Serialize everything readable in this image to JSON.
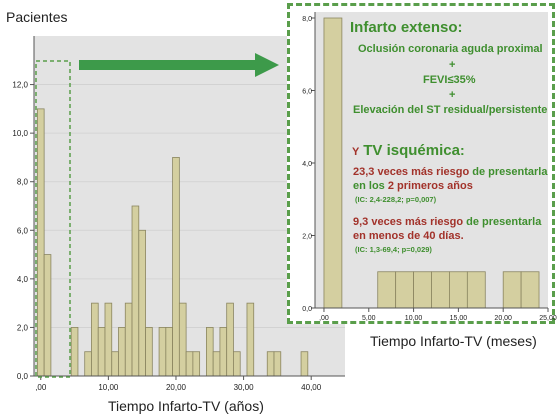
{
  "main_chart": {
    "ylabel": "Pacientes",
    "xlabel": "Tiempo Infarto-TV (años)"
  },
  "inset_chart": {
    "xlabel": "Tiempo Infarto-TV (meses)"
  },
  "annotation": {
    "heading": "Infarto extenso:",
    "line1": "Oclusión coronaria aguda proximal",
    "plus1": "+",
    "line2": "FEVI≤35%",
    "plus2": "+",
    "line3": "Elevación del ST residual/persistente",
    "tv_prefix": "Y",
    "tv_heading": "TV isquémica",
    "tv_colon": ":",
    "stat1_a": "23,3 veces más riesgo",
    "stat1_b": " de presentarla en los ",
    "stat1_c": "2 primeros años",
    "stat1_ci": "(IC: 2,4-228,2; p=0,007)",
    "stat2_a": "9,3 veces más riesgo",
    "stat2_b": " de presentarla ",
    "stat2_c": "en menos de 40 días.",
    "stat2_ci": "(IC: 1,3-69,4; p=0,029)"
  },
  "colors": {
    "bar_fill": "#d4cfa0",
    "bar_stroke": "#8a8560",
    "plot_bg": "#e3e3e3",
    "arrow": "#3d9a4a",
    "dashed": "#5a9e4b"
  },
  "chart_data": [
    {
      "type": "bar",
      "ylabel": "Pacientes",
      "xlabel": "Tiempo Infarto-TV (años)",
      "xlim": [
        -1,
        45
      ],
      "ylim": [
        0,
        14
      ],
      "xticks": [
        0,
        10,
        20,
        30,
        40
      ],
      "xtick_labels": [
        ",00",
        "10,00",
        "20,00",
        "30,00",
        "40,00"
      ],
      "yticks": [
        0,
        2,
        4,
        6,
        8,
        10,
        12
      ],
      "ytick_labels": [
        "0,0",
        "2,0",
        "4,0",
        "6,0",
        "8,0",
        "10,0",
        "12,0"
      ],
      "bin_width": 1,
      "bins": [
        {
          "x": 0,
          "value": 11
        },
        {
          "x": 1,
          "value": 5
        },
        {
          "x": 5,
          "value": 2
        },
        {
          "x": 7,
          "value": 1
        },
        {
          "x": 8,
          "value": 3
        },
        {
          "x": 9,
          "value": 2
        },
        {
          "x": 10,
          "value": 3
        },
        {
          "x": 11,
          "value": 1
        },
        {
          "x": 12,
          "value": 2
        },
        {
          "x": 13,
          "value": 3
        },
        {
          "x": 14,
          "value": 7
        },
        {
          "x": 15,
          "value": 6
        },
        {
          "x": 16,
          "value": 2
        },
        {
          "x": 18,
          "value": 2
        },
        {
          "x": 19,
          "value": 2
        },
        {
          "x": 20,
          "value": 9
        },
        {
          "x": 21,
          "value": 3
        },
        {
          "x": 22,
          "value": 1
        },
        {
          "x": 23,
          "value": 1
        },
        {
          "x": 25,
          "value": 2
        },
        {
          "x": 26,
          "value": 1
        },
        {
          "x": 27,
          "value": 2
        },
        {
          "x": 28,
          "value": 3
        },
        {
          "x": 29,
          "value": 1
        },
        {
          "x": 31,
          "value": 3
        },
        {
          "x": 34,
          "value": 1
        },
        {
          "x": 35,
          "value": 1
        },
        {
          "x": 39,
          "value": 1
        }
      ]
    },
    {
      "type": "bar",
      "xlabel": "Tiempo Infarto-TV (meses)",
      "xlim": [
        -1,
        25
      ],
      "ylim": [
        0,
        8
      ],
      "xticks": [
        0,
        5,
        10,
        15,
        20,
        25
      ],
      "xtick_labels": [
        ",00",
        "5,00",
        "10,00",
        "15,00",
        "20,00",
        "25,00"
      ],
      "yticks": [
        0,
        2,
        4,
        6,
        8
      ],
      "ytick_labels": [
        "0,0",
        "2,0",
        "4,0",
        "6,0",
        "8,0"
      ],
      "bins": [
        {
          "x0": 0,
          "x1": 2,
          "value": 8
        },
        {
          "x0": 6,
          "x1": 8,
          "value": 1
        },
        {
          "x0": 8,
          "x1": 10,
          "value": 1
        },
        {
          "x0": 10,
          "x1": 12,
          "value": 1
        },
        {
          "x0": 12,
          "x1": 14,
          "value": 1
        },
        {
          "x0": 14,
          "x1": 16,
          "value": 1
        },
        {
          "x0": 16,
          "x1": 18,
          "value": 1
        },
        {
          "x0": 20,
          "x1": 22,
          "value": 1
        },
        {
          "x0": 22,
          "x1": 24,
          "value": 1
        }
      ]
    }
  ]
}
